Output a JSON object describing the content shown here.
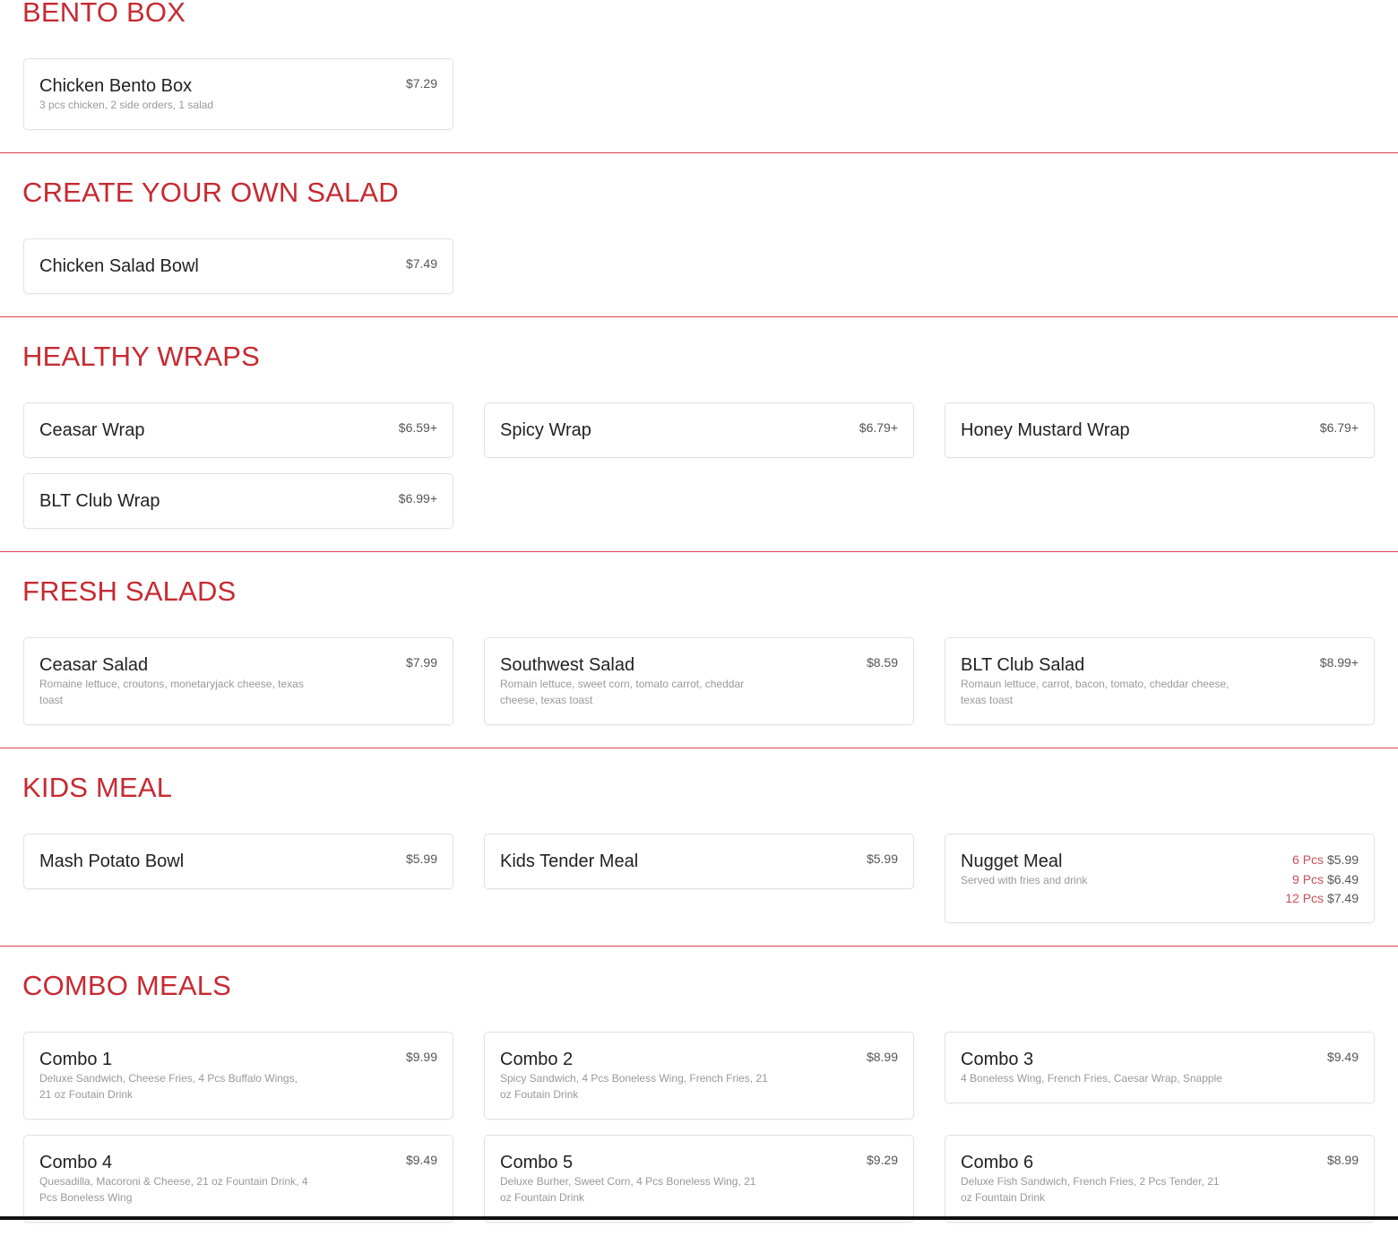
{
  "sections": [
    {
      "title": "BENTO BOX",
      "items": [
        {
          "name": "Chicken Bento Box",
          "price": "$7.29",
          "desc": "3 pcs chicken, 2 side orders, 1 salad"
        }
      ]
    },
    {
      "title": "CREATE YOUR OWN SALAD",
      "items": [
        {
          "name": "Chicken Salad Bowl",
          "price": "$7.49"
        }
      ]
    },
    {
      "title": "HEALTHY WRAPS",
      "items": [
        {
          "name": "Ceasar Wrap",
          "price": "$6.59+"
        },
        {
          "name": "Spicy Wrap",
          "price": "$6.79+"
        },
        {
          "name": "Honey Mustard Wrap",
          "price": "$6.79+"
        },
        {
          "name": "BLT Club Wrap",
          "price": "$6.99+"
        }
      ]
    },
    {
      "title": "FRESH SALADS",
      "items": [
        {
          "name": "Ceasar Salad",
          "price": "$7.99",
          "desc": "Romaine lettuce, croutons, monetaryjack cheese, texas toast"
        },
        {
          "name": "Southwest Salad",
          "price": "$8.59",
          "desc": "Romain lettuce, sweet corn, tomato carrot, cheddar cheese, texas toast"
        },
        {
          "name": "BLT Club Salad",
          "price": "$8.99+",
          "desc": "Romaun lettuce, carrot, bacon, tomato, cheddar cheese, texas toast"
        }
      ]
    },
    {
      "title": "KIDS MEAL",
      "items": [
        {
          "name": "Mash Potato Bowl",
          "price": "$5.99"
        },
        {
          "name": "Kids Tender Meal",
          "price": "$5.99"
        },
        {
          "name": "Nugget Meal",
          "desc": "Served with fries and drink",
          "options": [
            {
              "size": "6 Pcs",
              "price": "$5.99"
            },
            {
              "size": "9 Pcs",
              "price": "$6.49"
            },
            {
              "size": "12 Pcs",
              "price": "$7.49"
            }
          ]
        }
      ]
    },
    {
      "title": "COMBO MEALS",
      "items": [
        {
          "name": "Combo 1",
          "price": "$9.99",
          "desc": "Deluxe Sandwich, Cheese Fries, 4 Pcs Buffalo Wings, 21 oz Foutain Drink"
        },
        {
          "name": "Combo 2",
          "price": "$8.99",
          "desc": "Spicy Sandwich, 4 Pcs Boneless Wing, French Fries, 21 oz Foutain Drink"
        },
        {
          "name": "Combo 3",
          "price": "$9.49",
          "desc": "4 Boneless Wing, French Fries, Caesar Wrap, Snapple"
        },
        {
          "name": "Combo 4",
          "price": "$9.49",
          "desc": "Quesadilla, Macoroni & Cheese, 21 oz Fountain Drink, 4 Pcs Boneless Wing"
        },
        {
          "name": "Combo 5",
          "price": "$9.29",
          "desc": "Deluxe Burher, Sweet Corn, 4 Pcs Boneless Wing, 21 oz Fountain Drink"
        },
        {
          "name": "Combo 6",
          "price": "$8.99",
          "desc": "Deluxe Fish Sandwich, French Fries, 2 Pcs Tender, 21 oz Fountain Drink"
        }
      ]
    }
  ],
  "colors": {
    "accent": "#c62a32",
    "divider": "#d9434b",
    "option_label": "#c9505a"
  }
}
